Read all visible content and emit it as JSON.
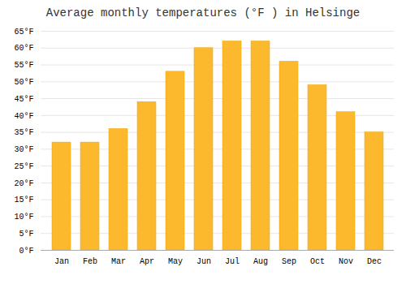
{
  "chart_data": {
    "type": "bar",
    "title": "Average monthly temperatures (°F ) in Helsinge",
    "categories": [
      "Jan",
      "Feb",
      "Mar",
      "Apr",
      "May",
      "Jun",
      "Jul",
      "Aug",
      "Sep",
      "Oct",
      "Nov",
      "Dec"
    ],
    "values": [
      32,
      32,
      36,
      44,
      53,
      60,
      62,
      62,
      56,
      49,
      41,
      35
    ],
    "color": "#FDB92E",
    "ylim": [
      0,
      65
    ],
    "yticks": [
      {
        "value": 0,
        "label": "0°F"
      },
      {
        "value": 5,
        "label": "5°F"
      },
      {
        "value": 10,
        "label": "10°F"
      },
      {
        "value": 15,
        "label": "15°F"
      },
      {
        "value": 20,
        "label": "20°F"
      },
      {
        "value": 25,
        "label": "25°F"
      },
      {
        "value": 30,
        "label": "30°F"
      },
      {
        "value": 35,
        "label": "35°F"
      },
      {
        "value": 40,
        "label": "40°F"
      },
      {
        "value": 45,
        "label": "45°F"
      },
      {
        "value": 50,
        "label": "50°F"
      },
      {
        "value": 55,
        "label": "55°F"
      },
      {
        "value": 60,
        "label": "60°F"
      },
      {
        "value": 65,
        "label": "65°F"
      }
    ],
    "grid": true
  }
}
